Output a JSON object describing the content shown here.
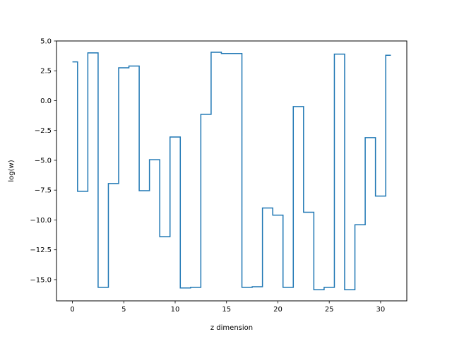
{
  "chart_data": {
    "type": "line",
    "drawstyle": "steps-mid",
    "xlabel": "z dimension",
    "ylabel": "log(w)",
    "xlim": [
      -1.55,
      32.55
    ],
    "ylim": [
      -16.78,
      5.0
    ],
    "xticks": [
      0,
      5,
      10,
      15,
      20,
      25,
      30
    ],
    "xtick_labels": [
      "0",
      "5",
      "10",
      "15",
      "20",
      "25",
      "30"
    ],
    "yticks": [
      5.0,
      2.5,
      0.0,
      -2.5,
      -5.0,
      -7.5,
      -10.0,
      -12.5,
      -15.0
    ],
    "ytick_labels": [
      "5.0",
      "2.5",
      "0.0",
      "−2.5",
      "−5.0",
      "−7.5",
      "−10.0",
      "−12.5",
      "−15.0"
    ],
    "grid": false,
    "series": [
      {
        "color": "#1f77b4",
        "x": [
          0,
          1,
          2,
          3,
          4,
          5,
          6,
          7,
          8,
          9,
          10,
          11,
          12,
          13,
          14,
          15,
          16,
          17,
          18,
          19,
          20,
          21,
          22,
          23,
          24,
          25,
          26,
          27,
          28,
          29,
          30,
          31
        ],
        "values": [
          3.25,
          -7.6,
          4.0,
          -15.65,
          -6.95,
          2.75,
          2.9,
          -7.55,
          -4.95,
          -11.4,
          -3.05,
          -15.7,
          -15.65,
          -1.15,
          4.05,
          3.95,
          3.95,
          -15.65,
          -15.6,
          -9.0,
          -9.6,
          -15.65,
          -0.5,
          -9.35,
          -15.85,
          -15.65,
          3.9,
          -15.85,
          -10.4,
          -3.1,
          -8.0,
          3.8
        ]
      }
    ]
  }
}
